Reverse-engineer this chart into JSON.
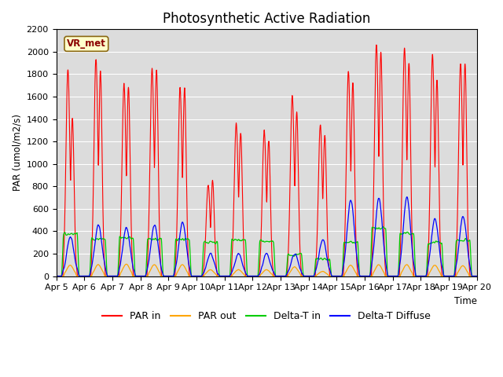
{
  "title": "Photosynthetic Active Radiation",
  "ylabel": "PAR (umol/m2/s)",
  "xlabel": "Time",
  "xlabels": [
    "Apr 5",
    "Apr 6",
    "Apr 7",
    "Apr 8",
    "Apr 9",
    "Apr 10",
    "Apr 11",
    "Apr 12",
    "Apr 13",
    "Apr 14",
    "Apr 15",
    "Apr 16",
    "Apr 17",
    "Apr 18",
    "Apr 19",
    "Apr 20"
  ],
  "ylim": [
    0,
    2200
  ],
  "yticks": [
    0,
    200,
    400,
    600,
    800,
    1000,
    1200,
    1400,
    1600,
    1800,
    2000,
    2200
  ],
  "colors": {
    "PAR_in": "#ff0000",
    "PAR_out": "#ffa500",
    "Delta_T_in": "#00cc00",
    "Delta_T_Diffuse": "#0000ff"
  },
  "legend_labels": [
    "PAR in",
    "PAR out",
    "Delta-T in",
    "Delta-T Diffuse"
  ],
  "watermark": "VR_met",
  "watermark_color": "#8B0000",
  "watermark_bg": "#ffffcc",
  "background_color": "#e8e8e8",
  "plot_bg": "#dcdcdc",
  "title_fontsize": 12,
  "n_days": 15,
  "pts_per_day": 144
}
